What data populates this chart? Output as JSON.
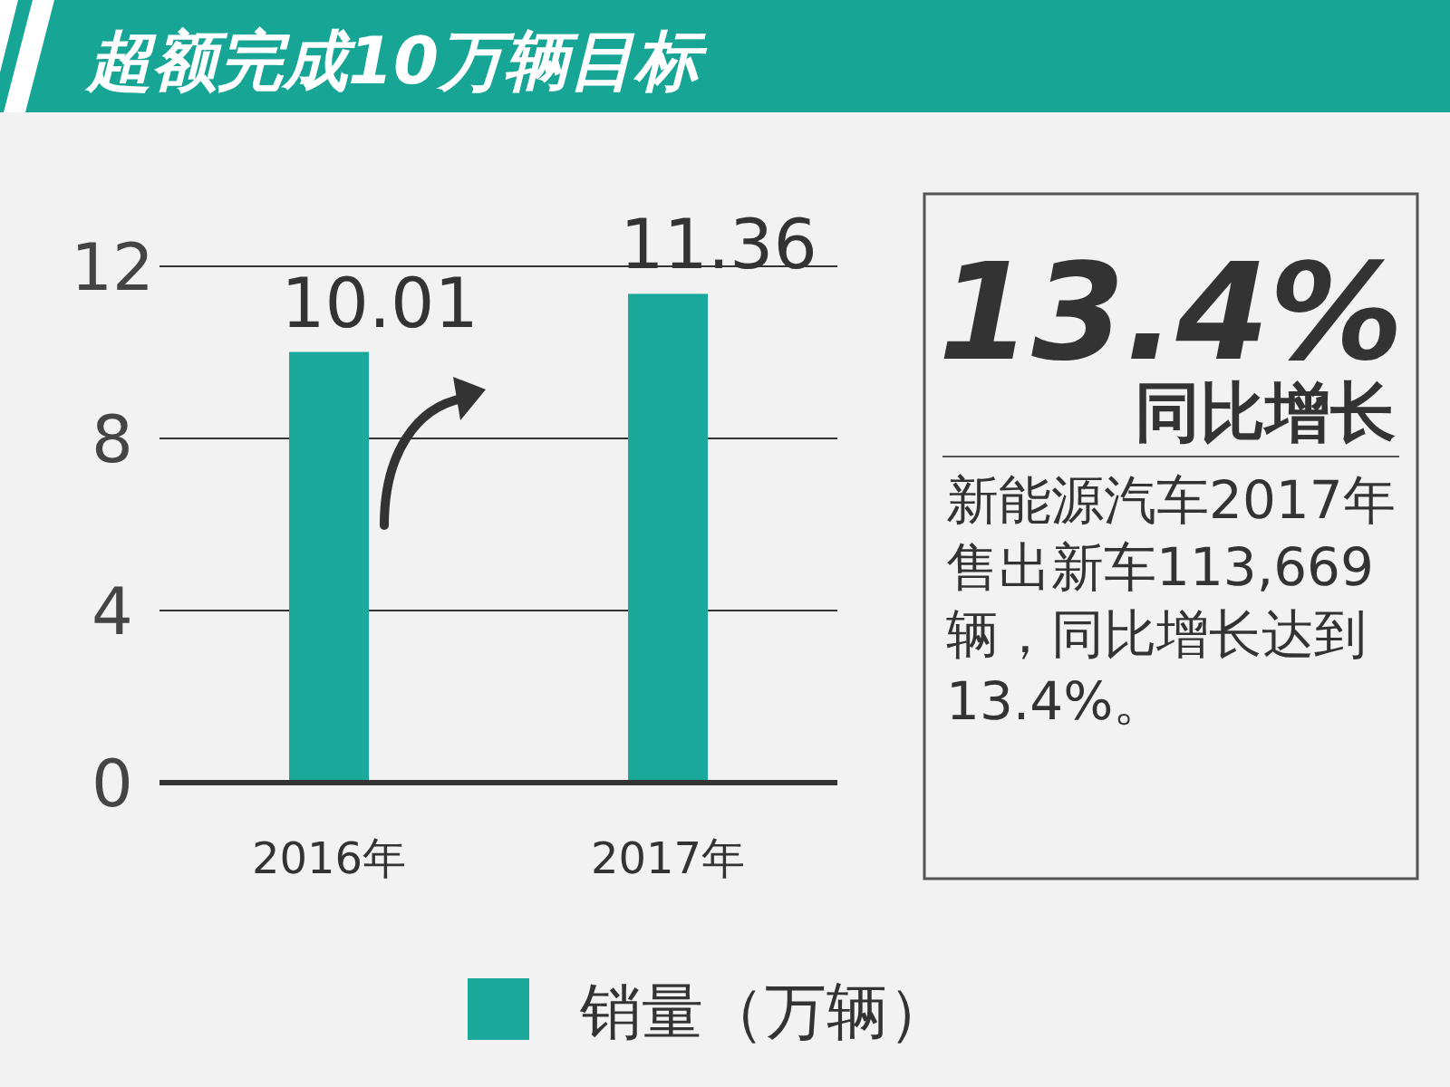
{
  "chart_data": {
    "type": "bar",
    "title": "超额完成10万辆目标",
    "categories": [
      "2016年",
      "2017年"
    ],
    "series": [
      {
        "name": "销量（万辆）",
        "color": "#1aa99b",
        "values": [
          10.01,
          11.36
        ]
      }
    ],
    "ylim": [
      0,
      12
    ],
    "yticks": [
      0,
      4,
      8,
      12
    ],
    "grid": "y",
    "data_labels": true,
    "legend": "bottom",
    "annotations": [
      "13.4%",
      "同比增长",
      "新能源汽车2017年售出新车113,669辆，同比增长达到13.4%。"
    ]
  }
}
